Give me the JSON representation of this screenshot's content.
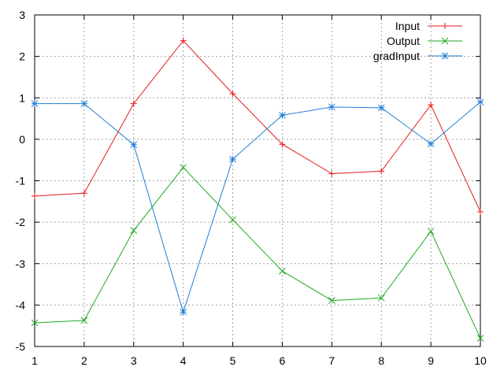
{
  "chart_data": {
    "type": "line",
    "x": [
      1,
      2,
      3,
      4,
      5,
      6,
      7,
      8,
      9,
      10
    ],
    "xlim": [
      1,
      10
    ],
    "ylim": [
      -5,
      3
    ],
    "x_ticks": [
      "1",
      "2",
      "3",
      "4",
      "5",
      "6",
      "7",
      "8",
      "9",
      "10"
    ],
    "y_ticks": [
      "3",
      "2",
      "1",
      "0",
      "-1",
      "-2",
      "-3",
      "-4",
      "-5"
    ],
    "grid": true,
    "legend_position": "top-right",
    "series": [
      {
        "name": "Input",
        "color": "#e41a1c",
        "marker": "plus",
        "values": [
          -1.37,
          -1.3,
          0.86,
          2.38,
          1.1,
          -0.12,
          -0.83,
          -0.77,
          0.83,
          -1.75
        ]
      },
      {
        "name": "Output",
        "color": "#1faa1f",
        "marker": "x",
        "values": [
          -4.43,
          -4.37,
          -2.2,
          -0.68,
          -1.94,
          -3.18,
          -3.89,
          -3.83,
          -2.22,
          -4.8
        ]
      },
      {
        "name": "gradInput",
        "color": "#1f7fd6",
        "marker": "star",
        "values": [
          0.86,
          0.86,
          -0.13,
          -4.17,
          -0.48,
          0.58,
          0.78,
          0.76,
          -0.11,
          0.9
        ]
      }
    ]
  }
}
